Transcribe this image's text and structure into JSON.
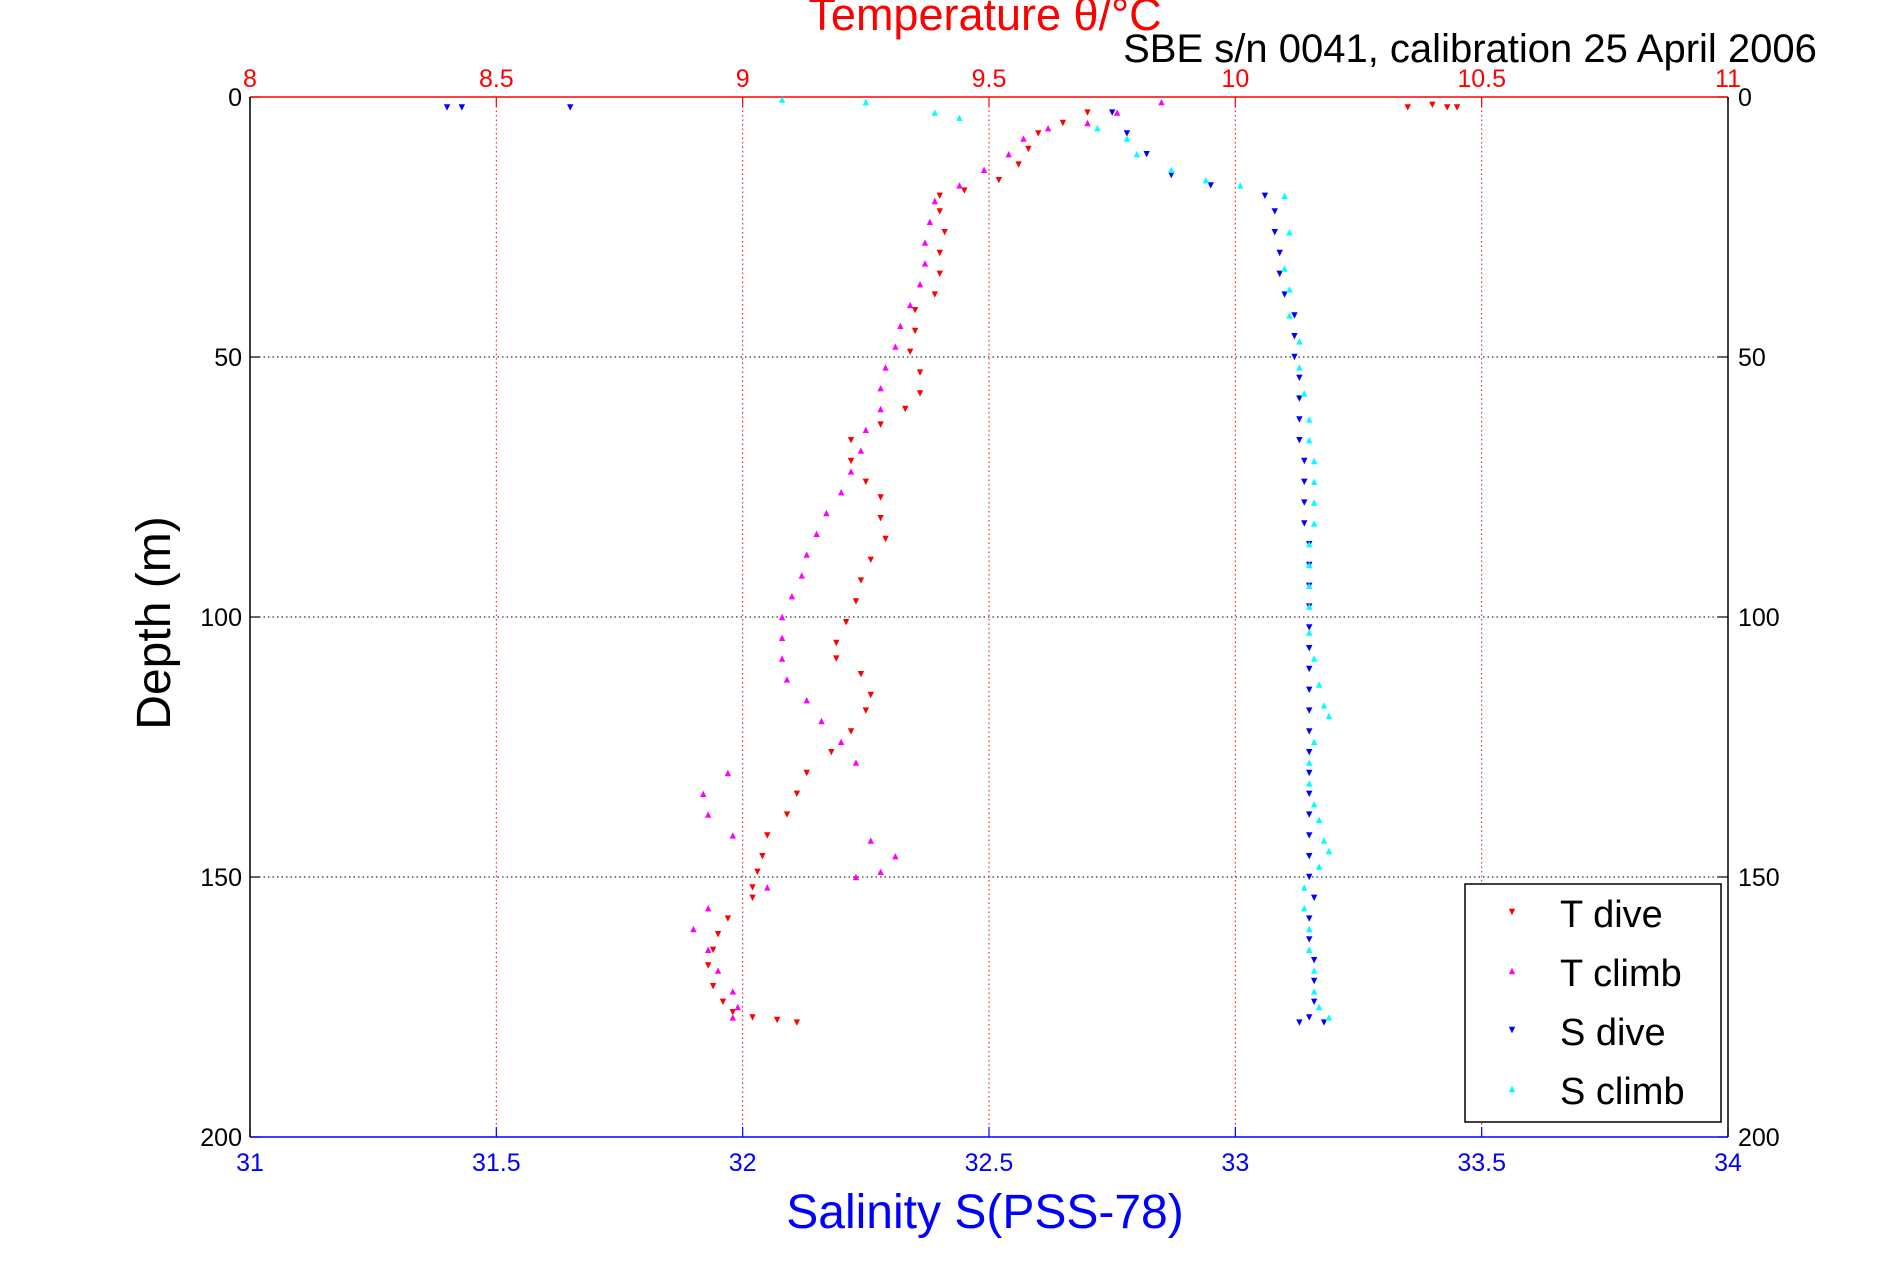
{
  "colors": {
    "temperature_axis": "#ff0000",
    "salinity_axis": "#0000ff",
    "t_dive": "#ff0000",
    "t_climb": "#ff00ff",
    "s_dive": "#0000ff",
    "s_climb": "#00ffff"
  },
  "chart_data": {
    "type": "scatter",
    "title": "Temperature θ/°C",
    "subtitle": "SBE s/n 0041, calibration 25 April 2006",
    "ylabel": "Depth (m)",
    "xlabel": "Salinity S(PSS-78)",
    "top_xlabel": "Temperature θ/°C",
    "ylim": [
      0,
      200
    ],
    "y_reversed": true,
    "y_ticks": [
      0,
      50,
      100,
      150,
      200
    ],
    "temperature_xlim": [
      8,
      11
    ],
    "temperature_ticks": [
      "8",
      "8.5",
      "9",
      "9.5",
      "10",
      "10.5",
      "11"
    ],
    "salinity_xlim": [
      31,
      34
    ],
    "salinity_ticks": [
      "31",
      "31.5",
      "32",
      "32.5",
      "33",
      "33.5",
      "34"
    ],
    "grid": true,
    "legend_position": "bottom-right",
    "series": [
      {
        "name": "T dive",
        "axis": "temperature",
        "marker": "triangle-down",
        "points": [
          [
            10.35,
            2
          ],
          [
            10.4,
            1.5
          ],
          [
            10.43,
            2
          ],
          [
            10.45,
            2
          ],
          [
            9.7,
            3
          ],
          [
            9.65,
            5
          ],
          [
            9.6,
            7
          ],
          [
            9.58,
            10
          ],
          [
            9.56,
            13
          ],
          [
            9.52,
            16
          ],
          [
            9.45,
            18
          ],
          [
            9.4,
            19
          ],
          [
            9.4,
            22
          ],
          [
            9.41,
            26
          ],
          [
            9.4,
            30
          ],
          [
            9.4,
            34
          ],
          [
            9.39,
            38
          ],
          [
            9.35,
            41
          ],
          [
            9.35,
            45
          ],
          [
            9.34,
            49
          ],
          [
            9.36,
            53
          ],
          [
            9.36,
            57
          ],
          [
            9.33,
            60
          ],
          [
            9.28,
            63
          ],
          [
            9.22,
            66
          ],
          [
            9.22,
            70
          ],
          [
            9.25,
            74
          ],
          [
            9.28,
            77
          ],
          [
            9.28,
            81
          ],
          [
            9.29,
            85
          ],
          [
            9.26,
            89
          ],
          [
            9.24,
            93
          ],
          [
            9.23,
            97
          ],
          [
            9.21,
            101
          ],
          [
            9.19,
            105
          ],
          [
            9.19,
            108
          ],
          [
            9.24,
            111
          ],
          [
            9.26,
            115
          ],
          [
            9.25,
            118
          ],
          [
            9.22,
            122
          ],
          [
            9.18,
            126
          ],
          [
            9.13,
            130
          ],
          [
            9.11,
            134
          ],
          [
            9.09,
            138
          ],
          [
            9.05,
            142
          ],
          [
            9.04,
            146
          ],
          [
            9.03,
            149
          ],
          [
            9.02,
            152
          ],
          [
            9.02,
            154
          ],
          [
            8.97,
            158
          ],
          [
            8.95,
            161
          ],
          [
            8.94,
            164
          ],
          [
            8.93,
            167
          ],
          [
            8.94,
            171
          ],
          [
            8.96,
            174
          ],
          [
            8.98,
            176
          ],
          [
            9.02,
            177
          ],
          [
            9.07,
            177.5
          ],
          [
            9.11,
            178
          ]
        ]
      },
      {
        "name": "T climb",
        "axis": "temperature",
        "marker": "triangle-up",
        "points": [
          [
            9.85,
            1
          ],
          [
            9.76,
            3
          ],
          [
            9.7,
            5
          ],
          [
            9.62,
            6
          ],
          [
            9.57,
            8
          ],
          [
            9.54,
            11
          ],
          [
            9.49,
            14
          ],
          [
            9.44,
            17
          ],
          [
            9.39,
            20
          ],
          [
            9.38,
            24
          ],
          [
            9.37,
            28
          ],
          [
            9.37,
            32
          ],
          [
            9.36,
            36
          ],
          [
            9.34,
            40
          ],
          [
            9.32,
            44
          ],
          [
            9.31,
            48
          ],
          [
            9.29,
            52
          ],
          [
            9.28,
            56
          ],
          [
            9.28,
            60
          ],
          [
            9.25,
            64
          ],
          [
            9.24,
            68
          ],
          [
            9.22,
            72
          ],
          [
            9.2,
            76
          ],
          [
            9.17,
            80
          ],
          [
            9.15,
            84
          ],
          [
            9.13,
            88
          ],
          [
            9.12,
            92
          ],
          [
            9.1,
            96
          ],
          [
            9.08,
            100
          ],
          [
            9.08,
            104
          ],
          [
            9.08,
            108
          ],
          [
            9.09,
            112
          ],
          [
            9.13,
            116
          ],
          [
            9.16,
            120
          ],
          [
            9.2,
            124
          ],
          [
            9.23,
            128
          ],
          [
            8.97,
            130
          ],
          [
            8.92,
            134
          ],
          [
            8.93,
            138
          ],
          [
            8.98,
            142
          ],
          [
            9.26,
            143
          ],
          [
            9.31,
            146
          ],
          [
            9.28,
            149
          ],
          [
            9.23,
            150
          ],
          [
            9.05,
            152
          ],
          [
            8.93,
            156
          ],
          [
            8.9,
            160
          ],
          [
            8.93,
            164
          ],
          [
            8.95,
            168
          ],
          [
            8.98,
            172
          ],
          [
            8.99,
            175
          ],
          [
            8.98,
            177
          ]
        ]
      },
      {
        "name": "S dive",
        "axis": "salinity",
        "marker": "triangle-down",
        "points": [
          [
            31.4,
            2
          ],
          [
            31.43,
            2
          ],
          [
            31.65,
            2
          ],
          [
            32.75,
            3
          ],
          [
            32.78,
            7
          ],
          [
            32.82,
            11
          ],
          [
            32.87,
            15
          ],
          [
            32.95,
            17
          ],
          [
            33.06,
            19
          ],
          [
            33.08,
            22
          ],
          [
            33.08,
            26
          ],
          [
            33.09,
            30
          ],
          [
            33.09,
            34
          ],
          [
            33.1,
            38
          ],
          [
            33.12,
            42
          ],
          [
            33.12,
            46
          ],
          [
            33.12,
            50
          ],
          [
            33.13,
            54
          ],
          [
            33.13,
            58
          ],
          [
            33.13,
            62
          ],
          [
            33.13,
            66
          ],
          [
            33.14,
            70
          ],
          [
            33.14,
            74
          ],
          [
            33.14,
            78
          ],
          [
            33.14,
            82
          ],
          [
            33.15,
            86
          ],
          [
            33.15,
            90
          ],
          [
            33.15,
            94
          ],
          [
            33.15,
            98
          ],
          [
            33.15,
            102
          ],
          [
            33.15,
            106
          ],
          [
            33.15,
            110
          ],
          [
            33.15,
            114
          ],
          [
            33.15,
            118
          ],
          [
            33.15,
            122
          ],
          [
            33.15,
            126
          ],
          [
            33.15,
            130
          ],
          [
            33.15,
            134
          ],
          [
            33.15,
            138
          ],
          [
            33.15,
            142
          ],
          [
            33.15,
            146
          ],
          [
            33.15,
            150
          ],
          [
            33.16,
            154
          ],
          [
            33.15,
            158
          ],
          [
            33.15,
            162
          ],
          [
            33.16,
            166
          ],
          [
            33.16,
            170
          ],
          [
            33.16,
            174
          ],
          [
            33.15,
            177
          ],
          [
            33.13,
            178
          ],
          [
            33.18,
            178
          ]
        ]
      },
      {
        "name": "S climb",
        "axis": "salinity",
        "marker": "triangle-up",
        "points": [
          [
            32.08,
            0.5
          ],
          [
            32.25,
            1
          ],
          [
            32.39,
            3
          ],
          [
            32.44,
            4
          ],
          [
            32.72,
            6
          ],
          [
            32.78,
            8
          ],
          [
            32.8,
            11
          ],
          [
            32.87,
            14
          ],
          [
            32.94,
            16
          ],
          [
            33.01,
            17
          ],
          [
            33.1,
            19
          ],
          [
            33.11,
            26
          ],
          [
            33.1,
            33
          ],
          [
            33.11,
            37
          ],
          [
            33.11,
            42
          ],
          [
            33.13,
            47
          ],
          [
            33.13,
            52
          ],
          [
            33.14,
            57
          ],
          [
            33.15,
            62
          ],
          [
            33.15,
            66
          ],
          [
            33.16,
            70
          ],
          [
            33.16,
            74
          ],
          [
            33.16,
            78
          ],
          [
            33.16,
            82
          ],
          [
            33.15,
            86
          ],
          [
            33.15,
            90
          ],
          [
            33.15,
            94
          ],
          [
            33.15,
            98
          ],
          [
            33.15,
            103
          ],
          [
            33.16,
            108
          ],
          [
            33.17,
            113
          ],
          [
            33.18,
            117
          ],
          [
            33.19,
            119
          ],
          [
            33.16,
            124
          ],
          [
            33.15,
            128
          ],
          [
            33.15,
            132
          ],
          [
            33.16,
            136
          ],
          [
            33.17,
            139
          ],
          [
            33.18,
            143
          ],
          [
            33.19,
            145
          ],
          [
            33.17,
            148
          ],
          [
            33.14,
            152
          ],
          [
            33.14,
            156
          ],
          [
            33.15,
            160
          ],
          [
            33.15,
            164
          ],
          [
            33.16,
            168
          ],
          [
            33.16,
            172
          ],
          [
            33.17,
            175
          ],
          [
            33.19,
            177
          ]
        ]
      }
    ]
  }
}
